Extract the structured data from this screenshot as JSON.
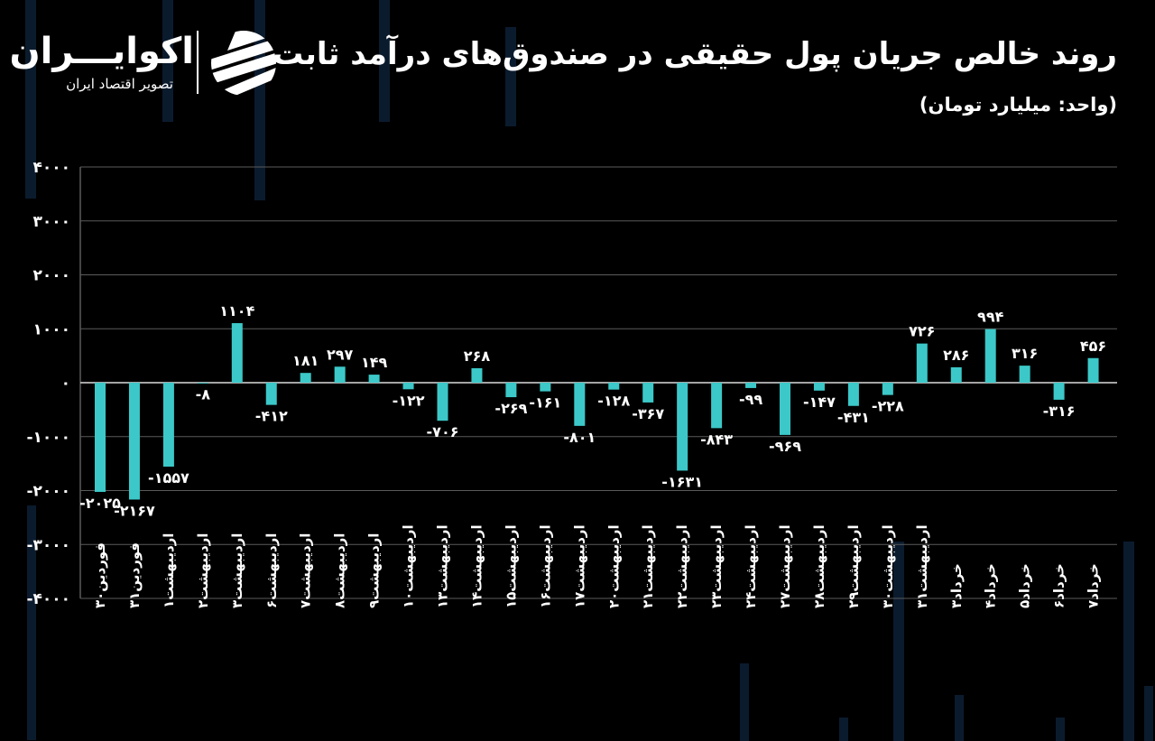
{
  "header": {
    "title": "روند خالص جریان پول حقیقی در صندوق‌های درآمد ثابت",
    "unit": "(واحد: میلیارد تومان)"
  },
  "brand": {
    "name": "اکوایـــران",
    "tagline": "تصویر اقتصاد ایران",
    "logo_icon": "ekoiran-stripes-logo"
  },
  "colors": {
    "background": "#000000",
    "bar": "#3cc8c8",
    "grid": "#5a5a5a",
    "text": "#ffffff",
    "decor": "#0b1b2e"
  },
  "chart_data": {
    "type": "bar",
    "title": "روند خالص جریان پول حقیقی در صندوق‌های درآمد ثابت",
    "ylabel": "(واحد: میلیارد تومان)",
    "xlabel": "",
    "ylim": [
      -4000,
      4000
    ],
    "yticks": [
      4000,
      3000,
      2000,
      1000,
      0,
      -1000,
      -2000,
      -3000,
      -4000
    ],
    "ytick_labels": [
      "۴۰۰۰",
      "۳۰۰۰",
      "۲۰۰۰",
      "۱۰۰۰",
      "۰",
      "-۱۰۰۰",
      "-۲۰۰۰",
      "-۳۰۰۰",
      "-۴۰۰۰"
    ],
    "grid": true,
    "categories": [
      "فوردین۳۰",
      "فوردین۳۱",
      "اردیبهشت۱",
      "اردیبهشت۲",
      "اردیبهشت۳",
      "اردیبهشت۶",
      "اردیبهشت۷",
      "اردیبهشت۸",
      "اردیبهشت۹",
      "اردیبهشت۱۰",
      "اردیبهشت۱۳",
      "اردیبهشت۱۴",
      "اردیبهشت۱۵",
      "اردیبهشت۱۶",
      "اردیبهشت۱۷",
      "اردیبهشت۲۰",
      "اردیبهشت۲۱",
      "اردیبهشت۲۲",
      "اردیبهشت۲۳",
      "اردیبهشت۲۴",
      "اردیبهشت۲۷",
      "اردیبهشت۲۸",
      "اردیبهشت۲۹",
      "اردیبهشت۳۰",
      "اردیبهشت۳۱",
      "خرداد۳",
      "خرداد۴",
      "خرداد۵",
      "خرداد۶",
      "خرداد۷"
    ],
    "values": [
      -2025,
      -2167,
      -1557,
      -8,
      1104,
      -412,
      181,
      297,
      149,
      -122,
      -706,
      268,
      -269,
      -161,
      -801,
      -128,
      -367,
      -1631,
      -843,
      -99,
      -969,
      -147,
      -431,
      -228,
      726,
      286,
      994,
      316,
      -316,
      456
    ],
    "data_labels": [
      "-۲۰۲۵",
      "-۲۱۶۷",
      "-۱۵۵۷",
      "-۸",
      "۱۱۰۴",
      "-۴۱۲",
      "۱۸۱",
      "۲۹۷",
      "۱۴۹",
      "-۱۲۲",
      "-۷۰۶",
      "۲۶۸",
      "-۲۶۹",
      "-۱۶۱",
      "-۸۰۱",
      "-۱۲۸",
      "-۳۶۷",
      "-۱۶۳۱",
      "-۸۴۳",
      "-۹۹",
      "-۹۶۹",
      "-۱۴۷",
      "-۴۳۱",
      "-۲۲۸",
      "۷۲۶",
      "۲۸۶",
      "۹۹۴",
      "۳۱۶",
      "-۳۱۶",
      "۴۵۶"
    ]
  }
}
